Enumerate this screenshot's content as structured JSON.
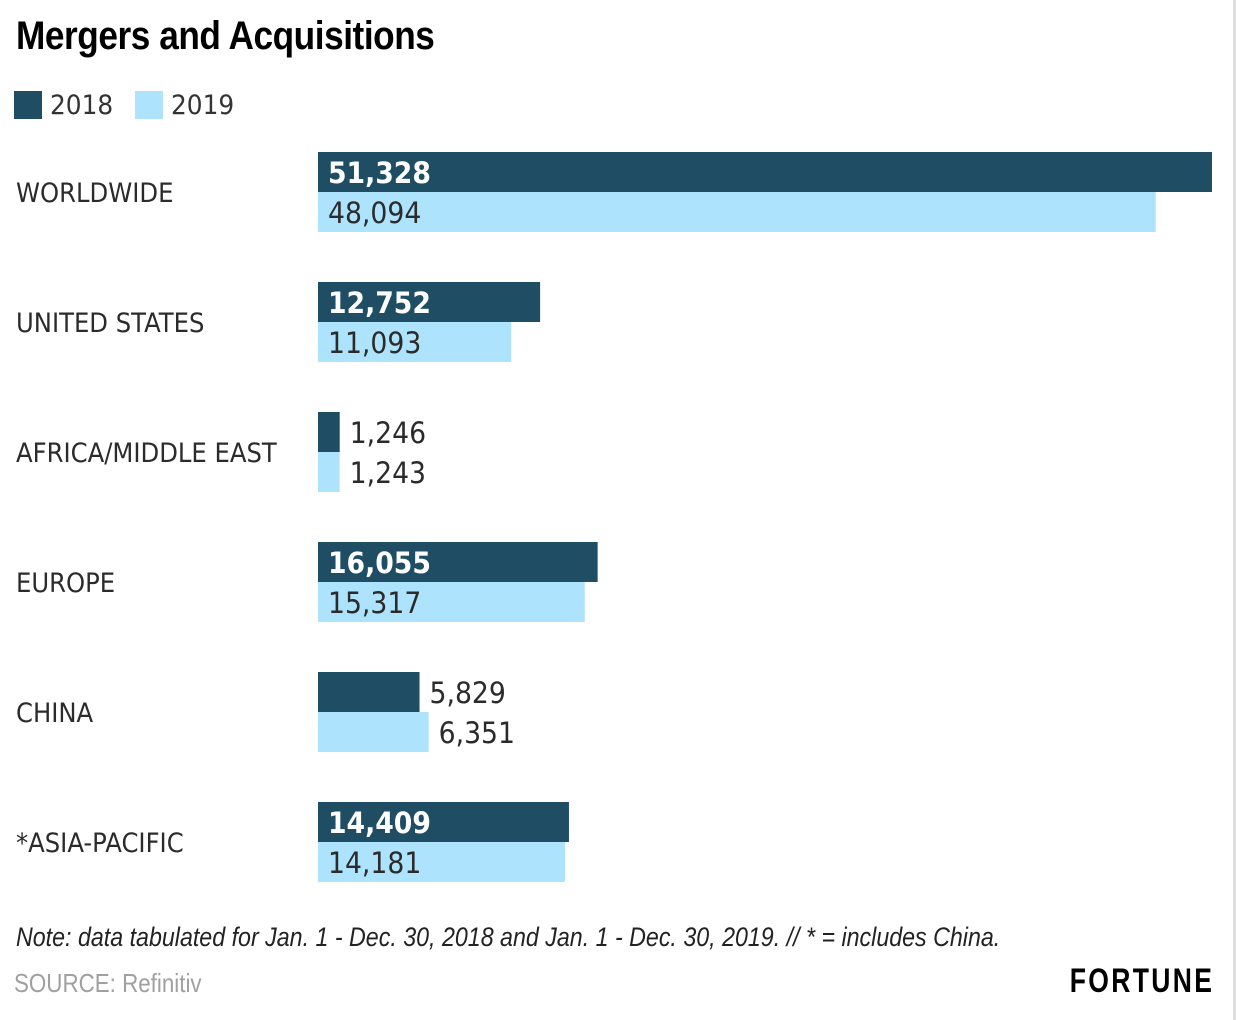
{
  "chart_data": {
    "type": "bar",
    "orientation": "horizontal",
    "title": "Mergers and Acquisitions",
    "categories": [
      "WORLDWIDE",
      "UNITED STATES",
      "AFRICA/MIDDLE EAST",
      "EUROPE",
      "CHINA",
      "*ASIA-PACIFIC"
    ],
    "series": [
      {
        "name": "2018",
        "color": "#1f4e64",
        "values": [
          51328,
          12752,
          1246,
          16055,
          5829,
          14409
        ],
        "labels": [
          "51,328",
          "12,752",
          "1,246",
          "16,055",
          "5,829",
          "14,409"
        ]
      },
      {
        "name": "2019",
        "color": "#aee3fd",
        "values": [
          48094,
          11093,
          1243,
          15317,
          6351,
          14181
        ],
        "labels": [
          "48,094",
          "11,093",
          "1,243",
          "15,317",
          "6,351",
          "14,181"
        ]
      }
    ],
    "xlim": [
      0,
      51328
    ],
    "grid": false,
    "legend_position": "top-left",
    "xlabel": "",
    "ylabel": ""
  },
  "note": "Note: data tabulated for Jan. 1 - Dec. 30, 2018 and Jan. 1 - Dec. 30, 2019. // * = includes China.",
  "source": "SOURCE: Refinitiv",
  "brand": "FORTUNE"
}
